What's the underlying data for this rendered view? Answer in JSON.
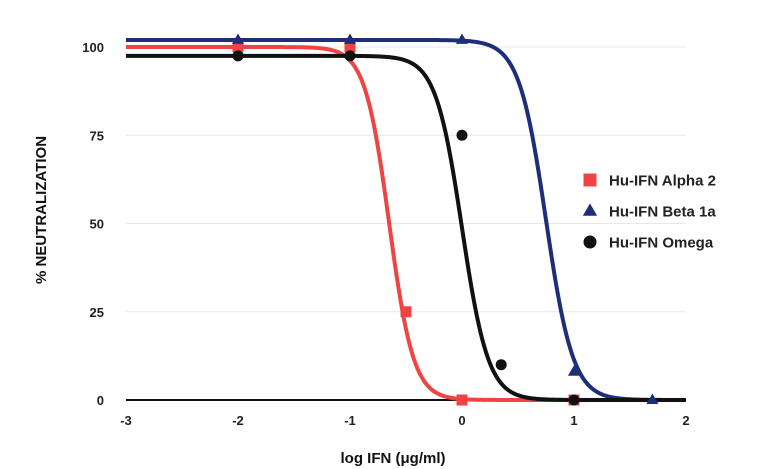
{
  "chart_data": {
    "type": "scatter",
    "ylabel": "% NEUTRALIZATION",
    "xlabel": "log IFN (μg/ml)",
    "xlim": [
      -3,
      2
    ],
    "ylim": [
      0,
      100
    ],
    "xticks": [
      "-3",
      "-2",
      "-1",
      "0",
      "1",
      "2"
    ],
    "yticks": [
      "0",
      "25",
      "50",
      "75",
      "100"
    ],
    "grid": "horizontal",
    "legend_position": "right",
    "series": [
      {
        "name": "Hu-IFN Alpha 2",
        "color": "#ef4444",
        "marker": "square",
        "points": [
          [
            -2,
            100
          ],
          [
            -1,
            100
          ],
          [
            -0.5,
            25
          ],
          [
            0,
            0
          ],
          [
            1,
            0
          ]
        ],
        "curve": {
          "top": 100,
          "bottom": 0,
          "ec50": -0.65,
          "hill": 4.0
        }
      },
      {
        "name": "Hu-IFN Beta 1a",
        "color": "#1e2f7a",
        "marker": "triangle",
        "points": [
          [
            -2,
            102
          ],
          [
            -1,
            102
          ],
          [
            0,
            102
          ],
          [
            1,
            8
          ],
          [
            1.7,
            0
          ]
        ],
        "curve": {
          "top": 102,
          "bottom": 0,
          "ec50": 0.75,
          "hill": 3.6
        }
      },
      {
        "name": "Hu-IFN Omega",
        "color": "#111111",
        "marker": "circle",
        "points": [
          [
            -2,
            97.5
          ],
          [
            -1,
            97.5
          ],
          [
            0,
            75
          ],
          [
            0.35,
            10
          ],
          [
            1,
            0
          ]
        ],
        "curve": {
          "top": 97.5,
          "bottom": 0,
          "ec50": 0.0,
          "hill": 3.7
        }
      }
    ]
  }
}
